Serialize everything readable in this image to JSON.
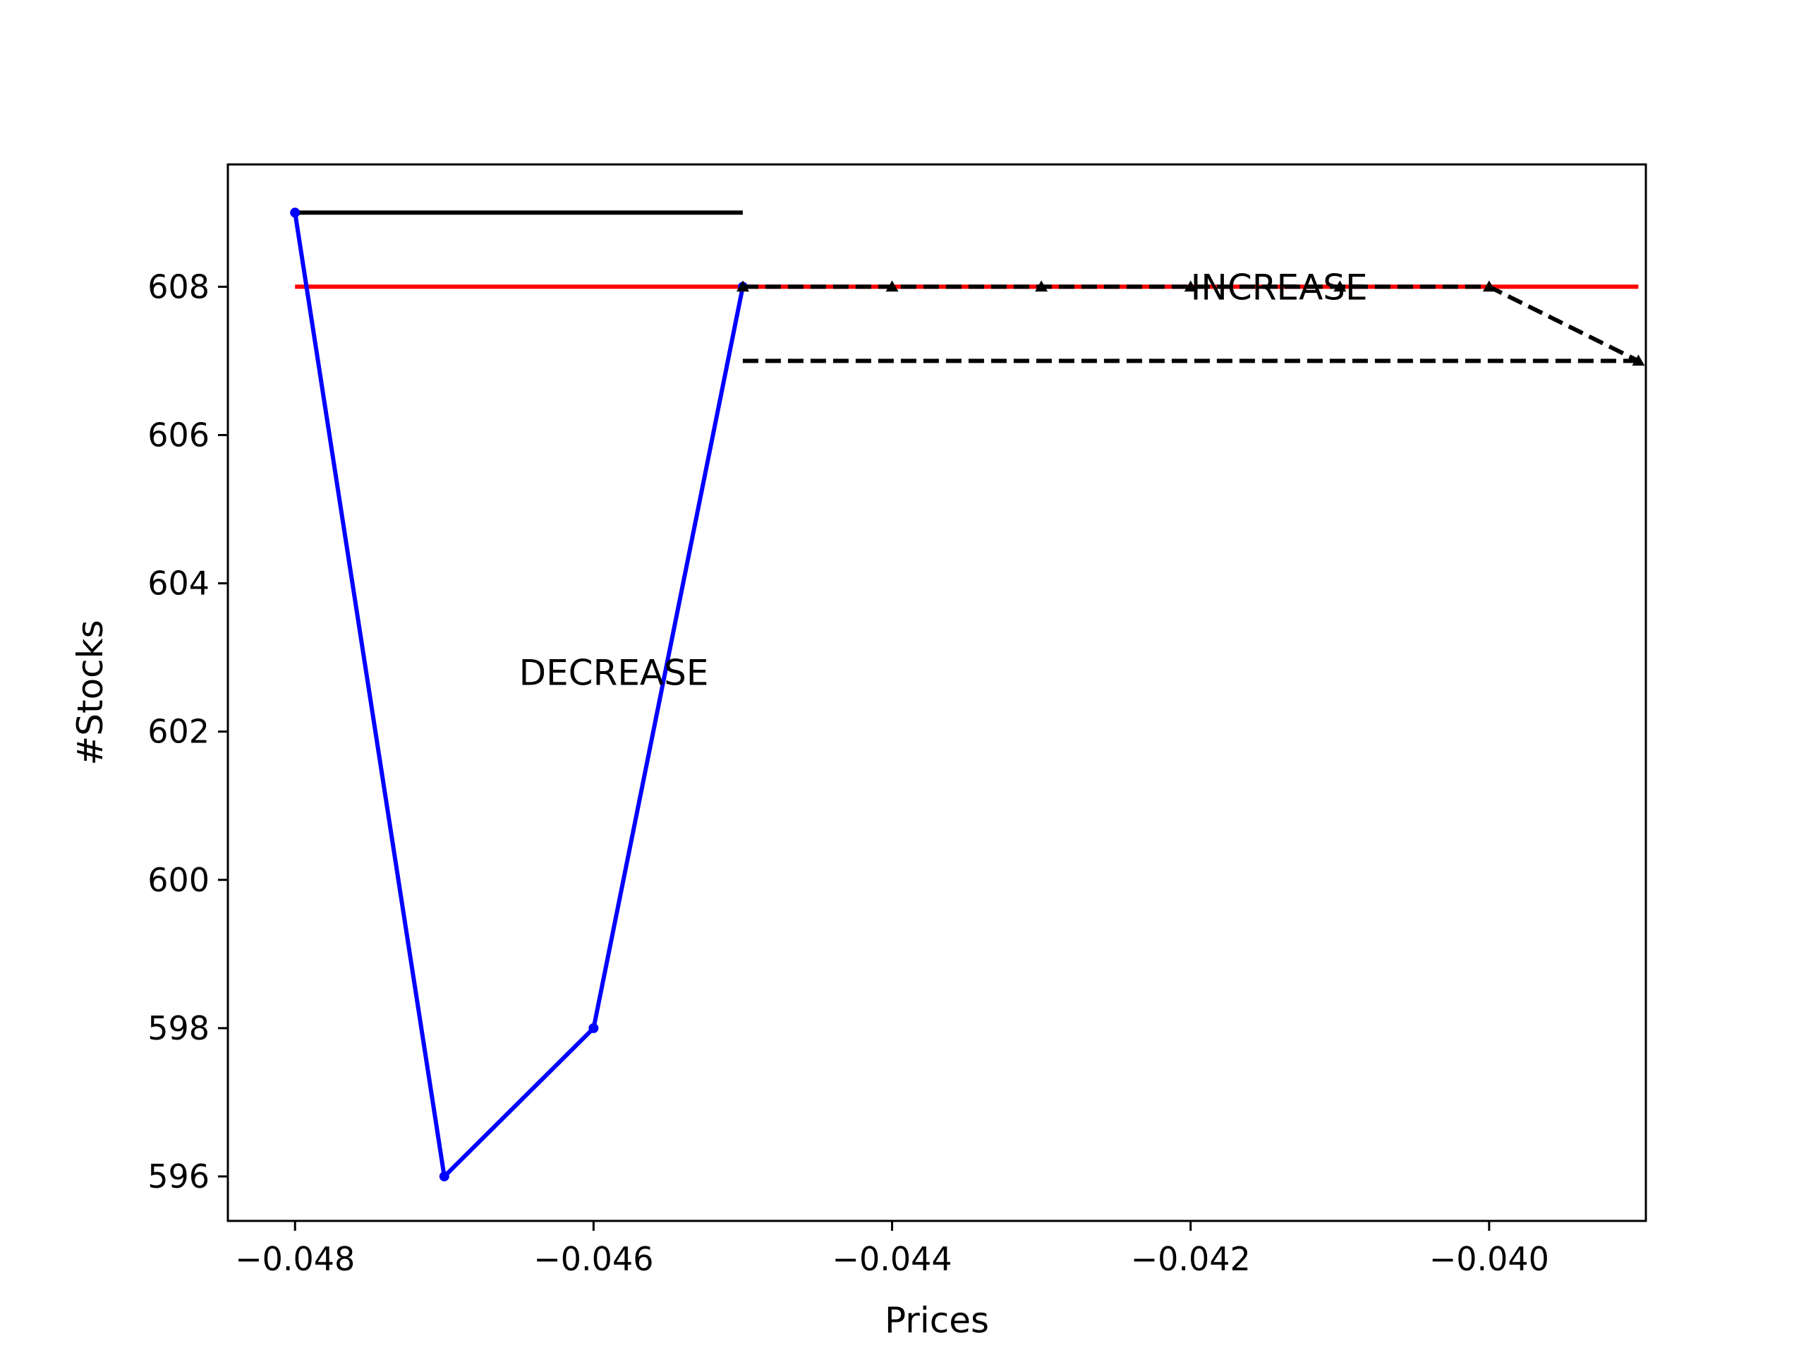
{
  "chart_data": {
    "type": "line",
    "title": "",
    "xlabel": "Prices",
    "ylabel": "#Stocks",
    "xlim": [
      -0.04845,
      -0.03895
    ],
    "ylim": [
      595.4,
      609.65
    ],
    "xticks": [
      -0.048,
      -0.046,
      -0.044,
      -0.042,
      -0.04
    ],
    "xtick_labels": [
      "−0.048",
      "−0.046",
      "−0.044",
      "−0.042",
      "−0.040"
    ],
    "yticks": [
      596,
      598,
      600,
      602,
      604,
      606,
      608
    ],
    "ytick_labels": [
      "596",
      "598",
      "600",
      "602",
      "604",
      "606",
      "608"
    ],
    "grid": false,
    "legend": "none",
    "series": [
      {
        "color": "#ff0000",
        "style": "solid",
        "marker": "none",
        "x": [
          -0.048,
          -0.039
        ],
        "y": [
          608,
          608
        ]
      },
      {
        "color": "#000000",
        "style": "solid",
        "marker": "none",
        "x": [
          -0.048,
          -0.045
        ],
        "y": [
          609,
          609
        ]
      },
      {
        "color": "#0000ff",
        "style": "solid",
        "marker": "dot",
        "x": [
          -0.048,
          -0.047,
          -0.046,
          -0.045
        ],
        "y": [
          609,
          596,
          598,
          608
        ]
      },
      {
        "color": "#000000",
        "style": "dashed",
        "marker": "triangle",
        "x": [
          -0.045,
          -0.044,
          -0.043,
          -0.042,
          -0.041,
          -0.04,
          -0.039
        ],
        "y": [
          608,
          608,
          608,
          608,
          608,
          608,
          607
        ]
      },
      {
        "color": "#000000",
        "style": "dashed",
        "marker": "none",
        "x": [
          -0.045,
          -0.039
        ],
        "y": [
          607,
          607
        ]
      }
    ],
    "annotations": [
      {
        "text": "DECREASE",
        "x": -0.0465,
        "y": 602.8
      },
      {
        "text": "INCREASE",
        "x": -0.042,
        "y": 608
      }
    ]
  }
}
